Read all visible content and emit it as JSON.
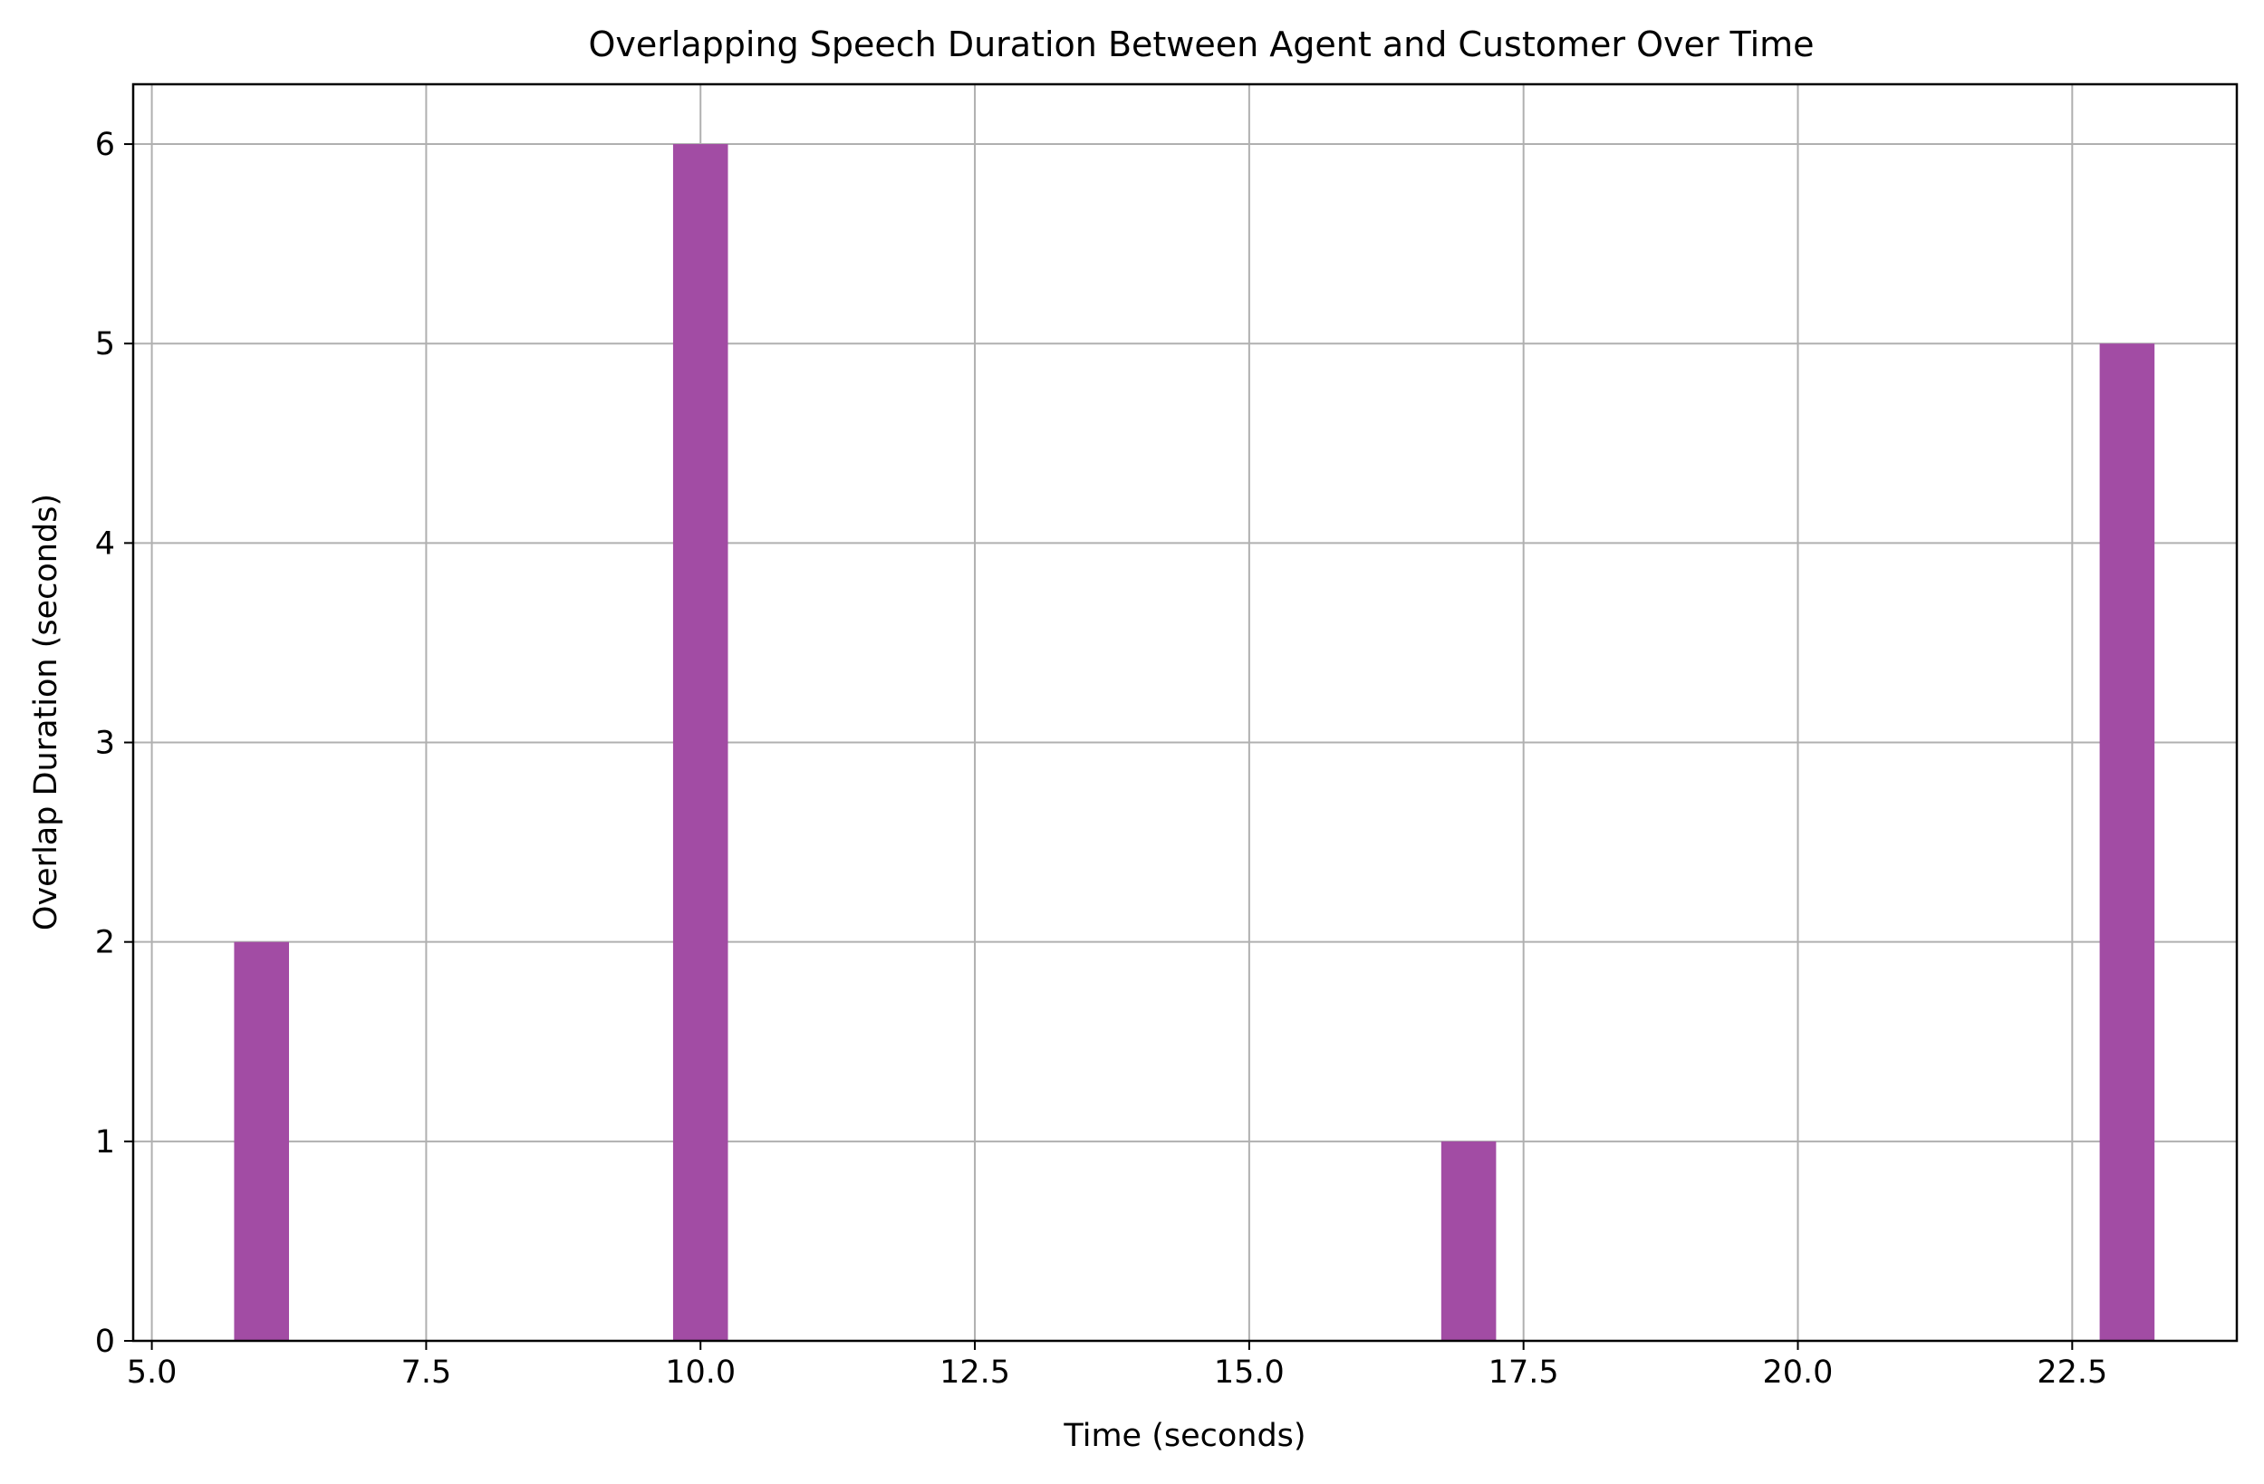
{
  "chart_data": {
    "type": "bar",
    "title": "Overlapping Speech Duration Between Agent and Customer Over Time",
    "xlabel": "Time (seconds)",
    "ylabel": "Overlap Duration (seconds)",
    "x": [
      6,
      10,
      17,
      23
    ],
    "values": [
      2,
      6,
      1,
      5
    ],
    "bar_width": 0.5,
    "xlim": [
      4.83,
      24.0
    ],
    "ylim": [
      0,
      6.3
    ],
    "xticks": [
      5.0,
      7.5,
      10.0,
      12.5,
      15.0,
      17.5,
      20.0,
      22.5
    ],
    "xtick_labels": [
      "5.0",
      "7.5",
      "10.0",
      "12.5",
      "15.0",
      "17.5",
      "20.0",
      "22.5"
    ],
    "yticks": [
      0,
      1,
      2,
      3,
      4,
      5,
      6
    ],
    "ytick_labels": [
      "0",
      "1",
      "2",
      "3",
      "4",
      "5",
      "6"
    ],
    "grid": true,
    "bar_color": "#a24ca4",
    "grid_color": "#b0b0b0"
  }
}
